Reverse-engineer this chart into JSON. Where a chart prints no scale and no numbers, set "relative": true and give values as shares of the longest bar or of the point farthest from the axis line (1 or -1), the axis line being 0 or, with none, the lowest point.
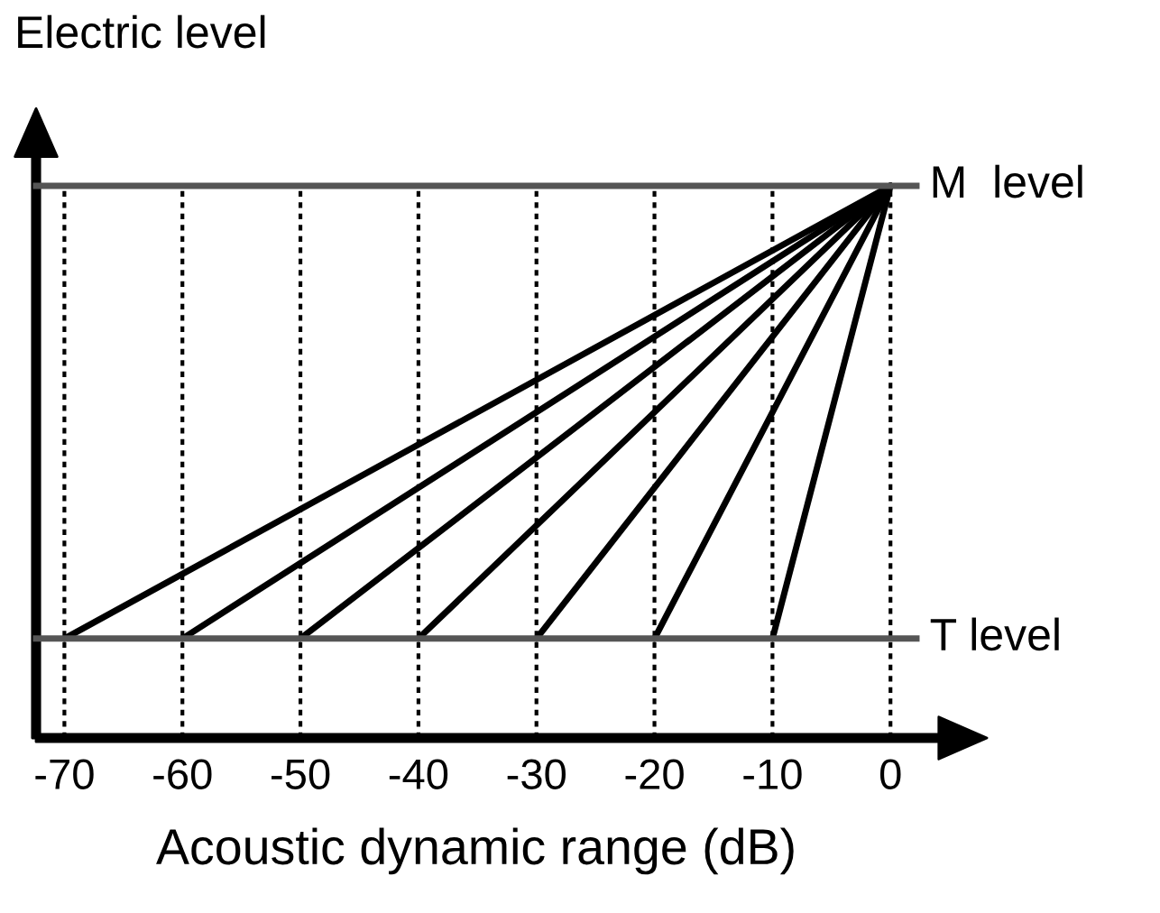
{
  "chart_data": {
    "type": "line",
    "relative": true,
    "xlabel": "Acoustic dynamic range (dB)",
    "ylabel": "Electric level",
    "xlim": [
      -72.4,
      2.2
    ],
    "xticks": [
      -70,
      -60,
      -50,
      -40,
      -30,
      -20,
      -10,
      0
    ],
    "grid": "x",
    "ref_lines": [
      {
        "axis": "y",
        "value": 1,
        "label": "M  level",
        "color": "#555555"
      },
      {
        "axis": "y",
        "value": 0.18,
        "label": "T level",
        "color": "#555555"
      }
    ],
    "series": [
      {
        "color": "#000000",
        "x": [
          -70,
          0
        ],
        "values": [
          0.18,
          1
        ]
      },
      {
        "color": "#000000",
        "x": [
          -60,
          0
        ],
        "values": [
          0.18,
          1
        ]
      },
      {
        "color": "#000000",
        "x": [
          -50,
          0
        ],
        "values": [
          0.18,
          1
        ]
      },
      {
        "color": "#000000",
        "x": [
          -40,
          0
        ],
        "values": [
          0.18,
          1
        ]
      },
      {
        "color": "#000000",
        "x": [
          -30,
          0
        ],
        "values": [
          0.18,
          1
        ]
      },
      {
        "color": "#000000",
        "x": [
          -20,
          0
        ],
        "values": [
          0.18,
          1
        ]
      },
      {
        "color": "#000000",
        "x": [
          -10,
          0
        ],
        "values": [
          0.18,
          1
        ]
      }
    ]
  }
}
